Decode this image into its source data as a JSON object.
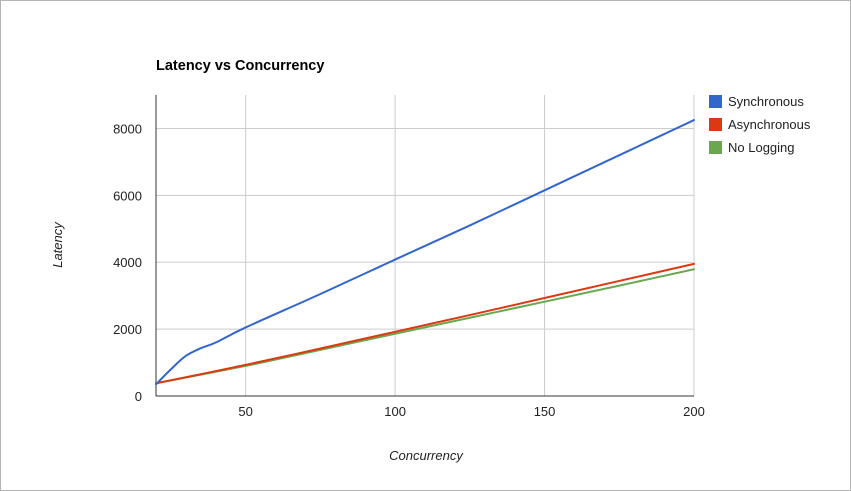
{
  "chart_data": {
    "type": "line",
    "title": "Latency vs Concurrency",
    "xlabel": "Concurrency",
    "ylabel": "Latency",
    "xlim": [
      20,
      200
    ],
    "ylim": [
      0,
      9000
    ],
    "x_ticks": [
      50,
      100,
      150,
      200
    ],
    "y_ticks": [
      0,
      2000,
      4000,
      6000,
      8000
    ],
    "grid": true,
    "legend_position": "right",
    "series": [
      {
        "name": "Synchronous",
        "color": "#3366cc",
        "x": [
          20,
          25,
          30,
          35,
          40,
          50,
          75,
          100,
          125,
          150,
          175,
          200
        ],
        "y": [
          350,
          800,
          1200,
          1430,
          1600,
          2050,
          3050,
          4080,
          5100,
          6150,
          7200,
          8250
        ]
      },
      {
        "name": "Asynchronous",
        "color": "#dc3912",
        "x": [
          20,
          50,
          75,
          100,
          125,
          150,
          175,
          200
        ],
        "y": [
          380,
          930,
          1420,
          1920,
          2420,
          2930,
          3440,
          3950
        ]
      },
      {
        "name": "No Logging",
        "color": "#6aa84f",
        "x": [
          20,
          50,
          75,
          100,
          125,
          150,
          175,
          200
        ],
        "y": [
          380,
          900,
          1380,
          1860,
          2340,
          2820,
          3300,
          3790
        ]
      }
    ]
  }
}
